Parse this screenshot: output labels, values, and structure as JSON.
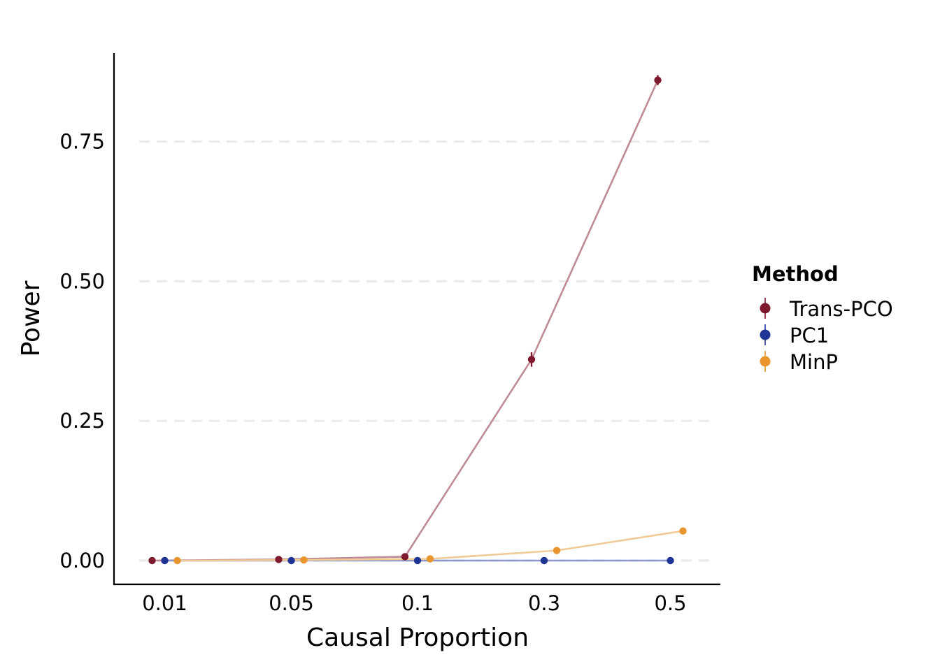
{
  "chart_data": {
    "type": "line",
    "xlabel": "Causal Proportion",
    "ylabel": "Power",
    "categories": [
      "0.01",
      "0.05",
      "0.1",
      "0.3",
      "0.5"
    ],
    "ylim": [
      -0.04,
      0.91
    ],
    "yticks": [
      0.0,
      0.25,
      0.5,
      0.75
    ],
    "ytick_labels": [
      "0.00",
      "0.25",
      "0.50",
      "0.75"
    ],
    "grid": "horizontal dashed",
    "legend": {
      "title": "Method",
      "placement": "right"
    },
    "series": [
      {
        "name": "Trans-PCO",
        "color": "#7f1a2e",
        "line_color": "#bf8c96",
        "values": [
          0.0,
          0.002,
          0.007,
          0.36,
          0.86
        ],
        "errors": [
          0.0,
          0.002,
          0.003,
          0.013,
          0.009
        ]
      },
      {
        "name": "PC1",
        "color": "#1f3595",
        "line_color": "#8c98c8",
        "values": [
          0.0,
          0.0,
          0.0,
          0.0,
          0.0
        ],
        "errors": [
          0.0,
          0.0,
          0.0,
          0.0,
          0.0
        ]
      },
      {
        "name": "MinP",
        "color": "#e8952d",
        "line_color": "#f1cb97",
        "values": [
          0.0,
          0.001,
          0.003,
          0.018,
          0.053
        ],
        "errors": [
          0.0,
          0.001,
          0.001,
          0.002,
          0.003
        ]
      }
    ]
  }
}
